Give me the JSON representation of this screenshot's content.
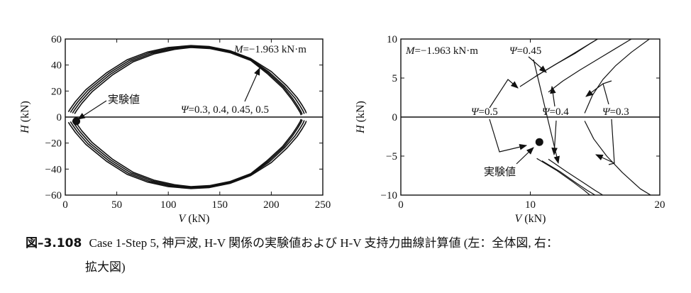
{
  "chart_data": [
    {
      "type": "line",
      "title": "",
      "xlabel": "V",
      "xunit": "(kN)",
      "ylabel": "H",
      "yunit": "(kN)",
      "xlim": [
        0,
        250
      ],
      "ylim": [
        -60,
        60
      ],
      "xticks": [
        0,
        50,
        100,
        150,
        200,
        250
      ],
      "yticks": [
        -60,
        -40,
        -20,
        0,
        20,
        40,
        60
      ],
      "xtick_labels": [
        "0",
        "50",
        "100",
        "150",
        "200",
        "250"
      ],
      "ytick_labels": [
        "−60",
        "−40",
        "−20",
        "0",
        "20",
        "40",
        "60"
      ],
      "grid": false,
      "annotation_moment": "M=−1.963 kN·m",
      "annotation_psi": "Ψ=0.3, 0.4, 0.45, 0.5",
      "annotation_exp": "実験値",
      "series": [
        {
          "values_note": "",
          "x": [
            3,
            5,
            10,
            20,
            40,
            60,
            80,
            100,
            122,
            140,
            160,
            180,
            200,
            215,
            225,
            230,
            233,
            234
          ],
          "y_upper": [
            4,
            6.5,
            12,
            21,
            34,
            44,
            50,
            53.5,
            55,
            54.2,
            51,
            45,
            35,
            24,
            15,
            9,
            5,
            3
          ]
        },
        {
          "x": [
            5,
            7,
            12,
            22,
            42,
            62,
            82,
            102,
            122,
            140,
            160,
            180,
            198,
            213,
            223,
            228,
            231,
            232
          ],
          "y_upper": [
            3.5,
            6,
            11.5,
            20.5,
            33.5,
            43.5,
            49.5,
            53,
            54.5,
            53.7,
            50.5,
            44.5,
            34.5,
            23.5,
            14.5,
            8.5,
            4.5,
            2.5
          ]
        },
        {
          "x": [
            7,
            9,
            14,
            24,
            44,
            64,
            84,
            104,
            122,
            140,
            160,
            180,
            197,
            212,
            221,
            226,
            229,
            230
          ],
          "y_upper": [
            3,
            5.5,
            11,
            20,
            33,
            43,
            49,
            52.5,
            54,
            53.2,
            50,
            44,
            34,
            23,
            14,
            8,
            4,
            2
          ]
        },
        {
          "x": [
            9,
            11,
            16,
            26,
            46,
            66,
            86,
            106,
            122,
            140,
            160,
            180,
            196,
            211,
            220,
            225,
            228,
            229
          ],
          "y_upper": [
            2.5,
            5,
            10.5,
            19.5,
            32.5,
            42.5,
            48.5,
            52,
            53.5,
            52.7,
            49.5,
            43.5,
            33.5,
            22.5,
            13.5,
            7.5,
            3.5,
            1.5
          ]
        }
      ],
      "experimental_point": {
        "x": 10.7,
        "y": -3.2
      }
    },
    {
      "type": "line",
      "title": "",
      "xlabel": "V",
      "xunit": "(kN)",
      "ylabel": "H",
      "yunit": "(kN)",
      "xlim": [
        0,
        20
      ],
      "ylim": [
        -10,
        10
      ],
      "xticks": [
        0,
        10,
        20
      ],
      "yticks": [
        -10,
        -5,
        0,
        5,
        10
      ],
      "xtick_labels": [
        "0",
        "10",
        "20"
      ],
      "ytick_labels": [
        "−10",
        "−5",
        "0",
        "5",
        "10"
      ],
      "grid": false,
      "annotation_moment": "M=−1.963 kN·m",
      "annotation_exp": "実験値",
      "series": [
        {
          "label": "Ψ=0.5",
          "upper": [
            [
              9.2,
              3.9
            ],
            [
              10.5,
              5.3
            ],
            [
              12,
              6.8
            ],
            [
              13.5,
              8.2
            ],
            [
              14.6,
              9.4
            ],
            [
              15.2,
              10
            ]
          ],
          "lower": [
            [
              10.5,
              -5.3
            ],
            [
              12,
              -6.8
            ],
            [
              13.2,
              -8.2
            ],
            [
              14.1,
              -9.3
            ],
            [
              14.6,
              -10
            ]
          ]
        },
        {
          "label": "Ψ=0.45",
          "upper": [
            [
              10.4,
              5.2
            ],
            [
              11.8,
              6.6
            ],
            [
              13.2,
              8
            ],
            [
              14.4,
              9.2
            ],
            [
              15.2,
              10
            ]
          ],
          "lower": [
            [
              10.9,
              -5.6
            ],
            [
              12.3,
              -7
            ],
            [
              13.5,
              -8.4
            ],
            [
              14.4,
              -9.4
            ],
            [
              15,
              -10
            ]
          ]
        },
        {
          "label": "Ψ=0.4",
          "upper": [
            [
              11.4,
              3.2
            ],
            [
              12.5,
              4.6
            ],
            [
              13.8,
              6
            ],
            [
              15.2,
              7.4
            ],
            [
              16.6,
              8.8
            ],
            [
              17.8,
              10
            ]
          ],
          "lower": [
            [
              11.4,
              -5.4
            ],
            [
              12.8,
              -7
            ],
            [
              14,
              -8.3
            ],
            [
              15,
              -9.4
            ],
            [
              15.6,
              -10
            ]
          ]
        },
        {
          "label": "Ψ=0.3",
          "upper": [
            [
              14.2,
              0.5
            ],
            [
              14.8,
              2.8
            ],
            [
              15.6,
              4.8
            ],
            [
              16.6,
              6.6
            ],
            [
              17.8,
              8.3
            ],
            [
              19.2,
              10
            ]
          ],
          "lower": [
            [
              14.2,
              -0.5
            ],
            [
              14.9,
              -2.8
            ],
            [
              15.9,
              -5
            ],
            [
              17.1,
              -7.1
            ],
            [
              18.5,
              -9.2
            ],
            [
              19.3,
              -10
            ]
          ]
        }
      ],
      "psi_labels": [
        "Ψ=0.45",
        "Ψ=0.5",
        "Ψ=0.4",
        "Ψ=0.3"
      ],
      "experimental_point": {
        "x": 10.7,
        "y": -3.2
      }
    }
  ],
  "caption": {
    "number": "図–3.108",
    "line1": "Case 1-Step 5, 神戸波, H-V 関係の実験値および H-V 支持力曲線計算値 (左：全体図, 右：",
    "line2": "拡大図)"
  }
}
